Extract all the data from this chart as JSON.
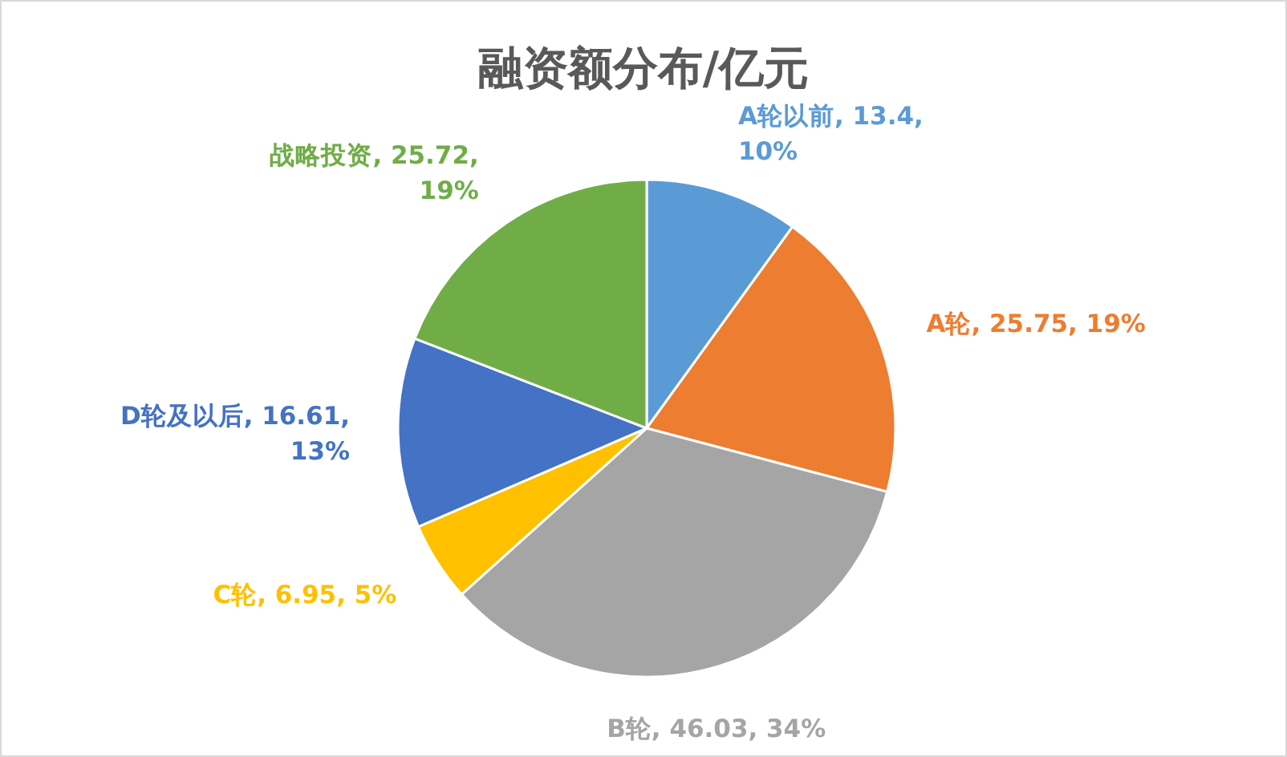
{
  "chart_data": {
    "type": "pie",
    "title": "融资额分布/亿元",
    "categories": [
      "A轮以前",
      "A轮",
      "B轮",
      "C轮",
      "D轮及以后",
      "战略投资"
    ],
    "values": [
      13.4,
      25.75,
      46.03,
      6.95,
      16.61,
      25.72
    ],
    "value_labels": [
      "13.4, 10%",
      "25.75, 19%",
      "46.03, 34%",
      "6.95, 5%",
      "16.61, 13%",
      "25.72, 19%"
    ],
    "colors": [
      "#5b9bd5",
      "#ed7d31",
      "#a5a5a5",
      "#ffc000",
      "#4472c4",
      "#70ad47"
    ]
  }
}
